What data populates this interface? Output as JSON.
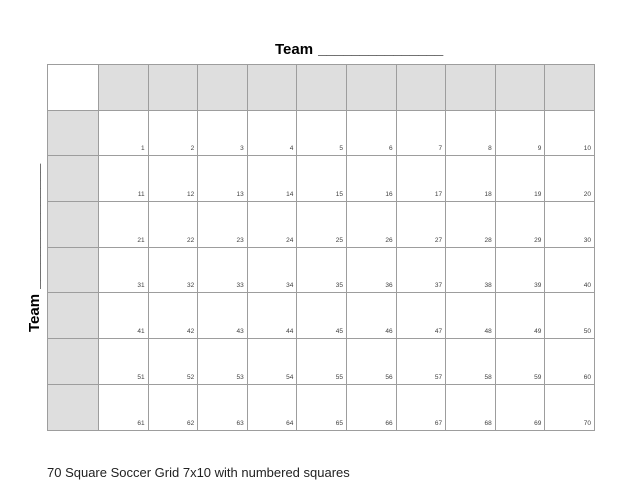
{
  "page": {
    "caption": "70 Square Soccer Grid 7x10 with numbered squares"
  },
  "top_label": {
    "text": "Team",
    "line": "_______________"
  },
  "left_label": {
    "text": "Team",
    "line": "_______________"
  },
  "grid": {
    "column_header_count": 10,
    "row_header_count": 7,
    "rows": [
      [
        1,
        2,
        3,
        4,
        5,
        6,
        7,
        8,
        9,
        10
      ],
      [
        11,
        12,
        13,
        14,
        15,
        16,
        17,
        18,
        19,
        20
      ],
      [
        21,
        22,
        23,
        24,
        25,
        26,
        27,
        28,
        29,
        30
      ],
      [
        31,
        32,
        33,
        34,
        35,
        36,
        37,
        38,
        39,
        40
      ],
      [
        41,
        42,
        43,
        44,
        45,
        46,
        47,
        48,
        49,
        50
      ],
      [
        51,
        52,
        53,
        54,
        55,
        56,
        57,
        58,
        59,
        60
      ],
      [
        61,
        62,
        63,
        64,
        65,
        66,
        67,
        68,
        69,
        70
      ]
    ]
  },
  "colors": {
    "header_fill": "#dedede",
    "grid_line": "#9d9d9d",
    "number_text": "#3f3f3f"
  }
}
